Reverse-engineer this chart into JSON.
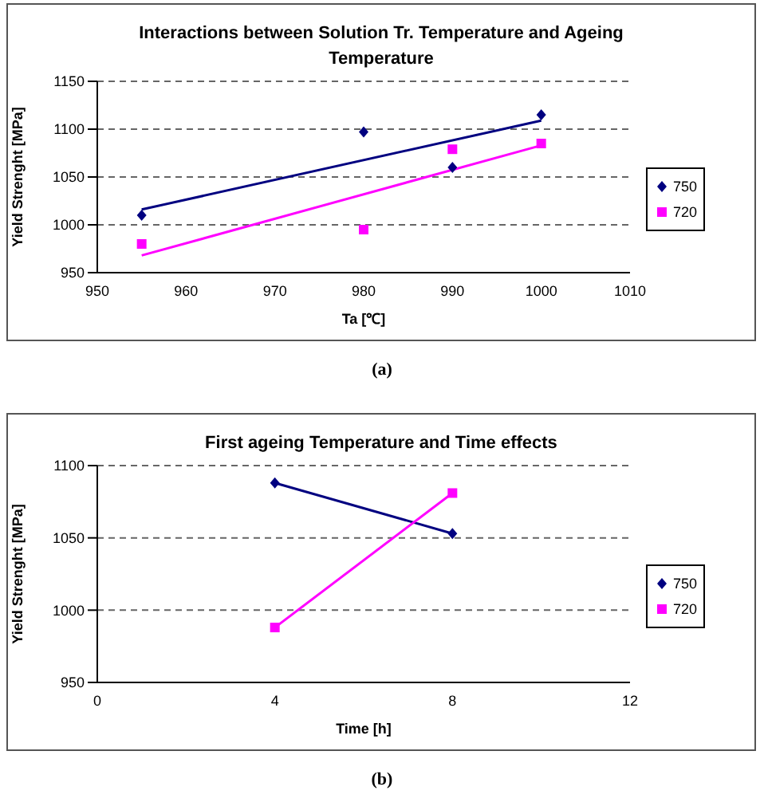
{
  "chart_data": [
    {
      "type": "scatter",
      "title": "Interactions between Solution Tr. Temperature and Ageing Temperature",
      "xlabel": "Ta [℃]",
      "ylabel": "Yield Strenght [MPa]",
      "annotations": [
        "(a)"
      ],
      "xlim": [
        950,
        1010
      ],
      "xticks": [
        950,
        960,
        970,
        980,
        990,
        1000,
        1010
      ],
      "ylim": [
        950,
        1150
      ],
      "yticks": [
        950,
        1000,
        1050,
        1100,
        1150
      ],
      "grid": "y",
      "legend": "right",
      "series": [
        {
          "name": "750",
          "color": "#000080",
          "marker": "diamond",
          "x": [
            955,
            980,
            990,
            1000
          ],
          "values": [
            1010,
            1097,
            1060,
            1115
          ]
        },
        {
          "name": "720",
          "color": "#ff00ff",
          "marker": "square",
          "x": [
            955,
            980,
            990,
            1000
          ],
          "values": [
            980,
            995,
            1079,
            1085
          ]
        },
        {
          "color": "#000080",
          "type": "line",
          "marker": "none",
          "x": [
            955,
            1000
          ],
          "values": [
            1016,
            1109
          ]
        },
        {
          "color": "#ff00ff",
          "type": "line",
          "marker": "none",
          "x": [
            955,
            1000
          ],
          "values": [
            968,
            1083
          ]
        }
      ]
    },
    {
      "type": "line",
      "title": "First ageing Temperature and Time effects",
      "xlabel": "Time [h]",
      "ylabel": "Yield Strenght [MPa]",
      "annotations": [
        "(b)"
      ],
      "xlim": [
        0,
        12
      ],
      "xticks": [
        0,
        4,
        8,
        12
      ],
      "ylim": [
        950,
        1100
      ],
      "yticks": [
        950,
        1000,
        1050,
        1100
      ],
      "grid": "y",
      "legend": "right",
      "series": [
        {
          "name": "750",
          "color": "#000080",
          "marker": "diamond",
          "x": [
            4,
            8
          ],
          "values": [
            1088,
            1053
          ]
        },
        {
          "name": "720",
          "color": "#ff00ff",
          "marker": "square",
          "x": [
            4,
            8
          ],
          "values": [
            988,
            1081
          ]
        }
      ]
    }
  ]
}
